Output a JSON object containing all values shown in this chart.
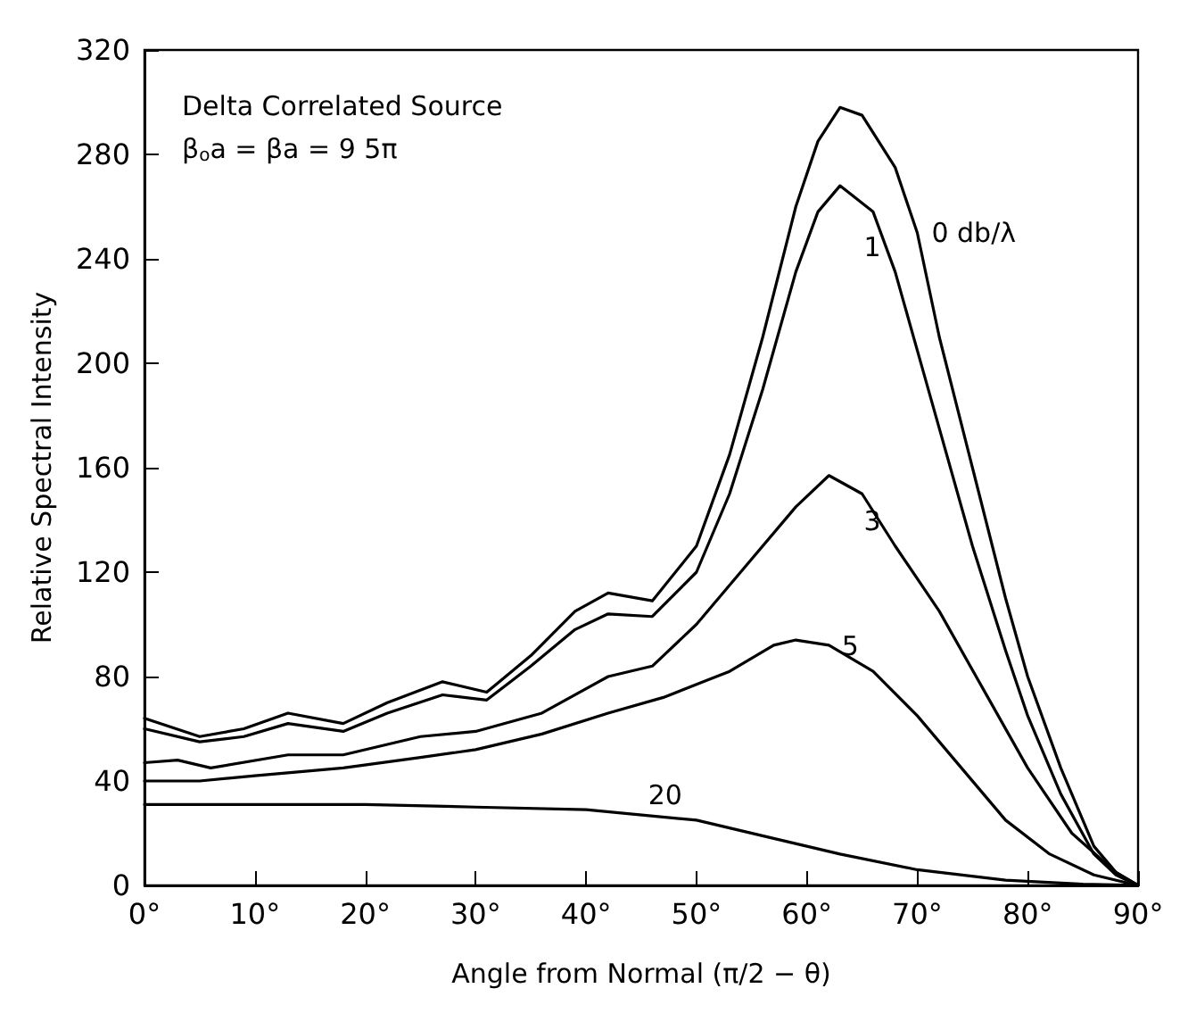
{
  "chart_data": {
    "type": "line",
    "xlabel": "Angle from Normal (π/2 − θ)",
    "ylabel": "Relative Spectral Intensity",
    "xlim": [
      0,
      90
    ],
    "ylim": [
      0,
      320
    ],
    "xticks": [
      {
        "value": 0,
        "label": "0°"
      },
      {
        "value": 10,
        "label": "10°"
      },
      {
        "value": 20,
        "label": "20°"
      },
      {
        "value": 30,
        "label": "30°"
      },
      {
        "value": 40,
        "label": "40°"
      },
      {
        "value": 50,
        "label": "50°"
      },
      {
        "value": 60,
        "label": "60°"
      },
      {
        "value": 70,
        "label": "70°"
      },
      {
        "value": 80,
        "label": "80°"
      },
      {
        "value": 90,
        "label": "90°"
      }
    ],
    "yticks": [
      0,
      40,
      80,
      120,
      160,
      200,
      240,
      280,
      320
    ],
    "marker": "none",
    "line_style": "solid",
    "grid": false,
    "series": [
      {
        "name": "0 db/λ",
        "color": "#000000",
        "x": [
          0,
          5,
          9,
          13,
          18,
          22,
          27,
          31,
          35,
          39,
          42,
          46,
          50,
          53,
          56,
          59,
          61,
          63,
          65,
          68,
          70,
          72,
          75,
          78,
          80,
          83,
          86,
          88,
          90
        ],
        "values": [
          64,
          57,
          60,
          66,
          62,
          70,
          78,
          74,
          88,
          105,
          112,
          109,
          130,
          165,
          210,
          260,
          285,
          298,
          295,
          275,
          250,
          210,
          160,
          110,
          80,
          45,
          15,
          5,
          0
        ]
      },
      {
        "name": "1",
        "color": "#000000",
        "x": [
          0,
          5,
          9,
          13,
          18,
          22,
          27,
          31,
          35,
          39,
          42,
          46,
          50,
          53,
          56,
          59,
          61,
          63,
          66,
          68,
          70,
          72,
          75,
          78,
          80,
          83,
          86,
          88,
          90
        ],
        "values": [
          60,
          55,
          57,
          62,
          59,
          66,
          73,
          71,
          84,
          98,
          104,
          103,
          120,
          150,
          190,
          235,
          258,
          268,
          258,
          235,
          205,
          175,
          130,
          90,
          65,
          35,
          12,
          4,
          0
        ]
      },
      {
        "name": "3",
        "color": "#000000",
        "x": [
          0,
          3,
          6,
          13,
          18,
          25,
          30,
          36,
          42,
          46,
          50,
          54,
          59,
          62,
          65,
          68,
          72,
          76,
          80,
          84,
          88,
          90
        ],
        "values": [
          47,
          48,
          45,
          50,
          50,
          57,
          59,
          66,
          80,
          84,
          100,
          120,
          145,
          157,
          150,
          130,
          105,
          75,
          45,
          20,
          5,
          0
        ]
      },
      {
        "name": "5",
        "color": "#000000",
        "x": [
          0,
          5,
          10,
          18,
          25,
          30,
          36,
          42,
          47,
          53,
          57,
          59,
          62,
          66,
          70,
          74,
          78,
          82,
          86,
          90
        ],
        "values": [
          40,
          40,
          42,
          45,
          49,
          52,
          58,
          66,
          72,
          82,
          92,
          94,
          92,
          82,
          65,
          45,
          25,
          12,
          4,
          0
        ]
      },
      {
        "name": "20",
        "color": "#000000",
        "x": [
          0,
          10,
          20,
          30,
          40,
          50,
          57,
          63,
          70,
          78,
          85,
          90
        ],
        "values": [
          31,
          31,
          31,
          30,
          29,
          25,
          18,
          12,
          6,
          2,
          0.5,
          0
        ]
      }
    ],
    "annotations": [
      "Delta Correlated Source",
      "β$_{o}$a = βa = 9 5π"
    ]
  }
}
